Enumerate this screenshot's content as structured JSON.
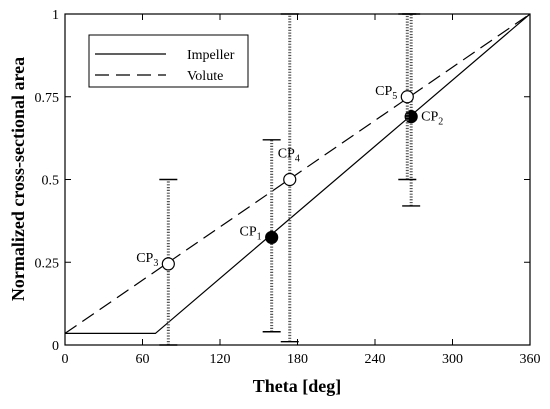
{
  "chart_data": {
    "type": "line",
    "xlabel": "Theta [deg]",
    "ylabel": "Normalized cross-sectional area",
    "xlim": [
      0,
      360
    ],
    "ylim": [
      0,
      1
    ],
    "xticks": [
      0,
      60,
      120,
      180,
      240,
      300,
      360
    ],
    "yticks": [
      0,
      0.25,
      0.5,
      0.75,
      1
    ],
    "ytick_labels": [
      "0",
      "0.25",
      "0.5",
      "0.75",
      "1"
    ],
    "grid": false,
    "legend": {
      "position": "top-left",
      "entries": [
        {
          "name": "Impeller",
          "style": "solid"
        },
        {
          "name": "Volute",
          "style": "dashed"
        }
      ]
    },
    "series": [
      {
        "name": "Impeller",
        "style": "solid",
        "points": [
          [
            0,
            0.035
          ],
          [
            70,
            0.035
          ],
          [
            360,
            1
          ]
        ]
      },
      {
        "name": "Volute",
        "style": "dashed",
        "points": [
          [
            0,
            0.035
          ],
          [
            360,
            1
          ]
        ]
      }
    ],
    "control_points": [
      {
        "label": "CP",
        "sub": "1",
        "x": 160,
        "y": 0.325,
        "fill": "#000000",
        "err": [
          0.04,
          0.62
        ],
        "label_side": "left"
      },
      {
        "label": "CP",
        "sub": "2",
        "x": 268,
        "y": 0.69,
        "fill": "#000000",
        "err": [
          0.42,
          1.0
        ],
        "label_side": "right"
      },
      {
        "label": "CP",
        "sub": "3",
        "x": 80,
        "y": 0.245,
        "fill": "#ffffff",
        "err": [
          0,
          0.5
        ],
        "label_side": "left"
      },
      {
        "label": "CP",
        "sub": "4",
        "x": 174,
        "y": 0.5,
        "fill": "#ffffff",
        "err": [
          0.01,
          1.0
        ],
        "label_side": "top"
      },
      {
        "label": "CP",
        "sub": "5",
        "x": 265,
        "y": 0.75,
        "fill": "#ffffff",
        "err": [
          0.5,
          1.0
        ],
        "label_side": "left"
      }
    ]
  }
}
